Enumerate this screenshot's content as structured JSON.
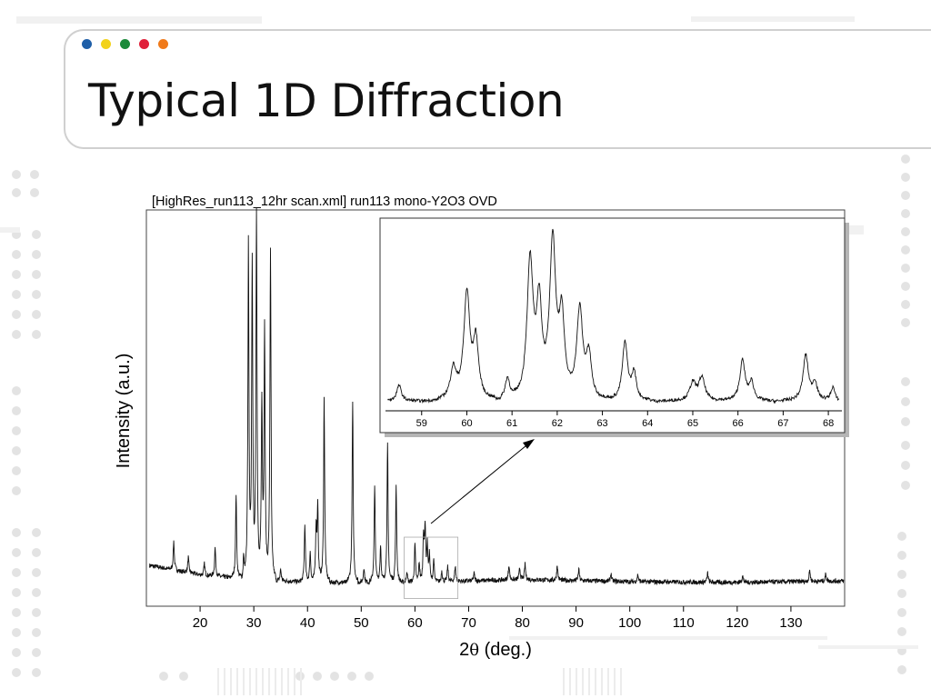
{
  "slide": {
    "title": "Typical 1D Diffraction",
    "dot_colors": [
      "#1f5fa8",
      "#f2d21b",
      "#1b8a3a",
      "#e0203a",
      "#f07a1a"
    ],
    "accent_gray": "#e3e3e3"
  },
  "chart_data": {
    "type": "line",
    "title": "[HighRes_run113_12hr scan.xml] run113 mono-Y2O3 OVD",
    "xlabel_prefix": "2",
    "xlabel_symbol": "θ",
    "xlabel_suffix": " (deg.)",
    "ylabel": "Intensity (a.u.)",
    "xlim": [
      10,
      140
    ],
    "ylim": [
      0,
      1.0
    ],
    "xticks": [
      20,
      30,
      40,
      50,
      60,
      70,
      80,
      90,
      100,
      110,
      120,
      130
    ],
    "baseline": [
      [
        10,
        0.108
      ],
      [
        20,
        0.082
      ],
      [
        30,
        0.07
      ],
      [
        40,
        0.063
      ],
      [
        60,
        0.062
      ],
      [
        80,
        0.07
      ],
      [
        100,
        0.064
      ],
      [
        120,
        0.062
      ],
      [
        140,
        0.066
      ]
    ],
    "peaks": [
      [
        15.1,
        0.075,
        0.12
      ],
      [
        17.8,
        0.04,
        0.12
      ],
      [
        20.8,
        0.03,
        0.12
      ],
      [
        22.8,
        0.075,
        0.12
      ],
      [
        26.7,
        0.22,
        0.12
      ],
      [
        28.1,
        0.05,
        0.12
      ],
      [
        29.0,
        0.87,
        0.12
      ],
      [
        29.7,
        0.8,
        0.12
      ],
      [
        30.5,
        0.95,
        0.12
      ],
      [
        31.5,
        0.46,
        0.12
      ],
      [
        32.0,
        0.65,
        0.12
      ],
      [
        33.1,
        0.87,
        0.12
      ],
      [
        35.0,
        0.03,
        0.12
      ],
      [
        39.5,
        0.15,
        0.12
      ],
      [
        40.5,
        0.08,
        0.12
      ],
      [
        41.6,
        0.14,
        0.12
      ],
      [
        41.9,
        0.2,
        0.12
      ],
      [
        43.1,
        0.48,
        0.12
      ],
      [
        48.4,
        0.47,
        0.12
      ],
      [
        50.5,
        0.04,
        0.12
      ],
      [
        52.5,
        0.25,
        0.12
      ],
      [
        53.6,
        0.1,
        0.12
      ],
      [
        54.9,
        0.36,
        0.12
      ],
      [
        56.5,
        0.25,
        0.12
      ],
      [
        58.5,
        0.03,
        0.12
      ],
      [
        60.0,
        0.1,
        0.12
      ],
      [
        60.8,
        0.05,
        0.12
      ],
      [
        61.6,
        0.12,
        0.12
      ],
      [
        61.9,
        0.14,
        0.12
      ],
      [
        62.3,
        0.09,
        0.12
      ],
      [
        62.7,
        0.07,
        0.12
      ],
      [
        63.5,
        0.06,
        0.12
      ],
      [
        65.0,
        0.03,
        0.12
      ],
      [
        66.1,
        0.04,
        0.12
      ],
      [
        67.5,
        0.04,
        0.12
      ],
      [
        71.0,
        0.02,
        0.12
      ],
      [
        77.5,
        0.04,
        0.12
      ],
      [
        79.5,
        0.03,
        0.12
      ],
      [
        80.5,
        0.04,
        0.12
      ],
      [
        86.5,
        0.04,
        0.12
      ],
      [
        90.5,
        0.03,
        0.12
      ],
      [
        96.5,
        0.02,
        0.12
      ],
      [
        101.5,
        0.02,
        0.12
      ],
      [
        114.5,
        0.025,
        0.12
      ],
      [
        121.0,
        0.02,
        0.12
      ],
      [
        133.5,
        0.03,
        0.12
      ],
      [
        136.5,
        0.02,
        0.12
      ]
    ],
    "zoom_box": {
      "x": [
        58,
        68
      ],
      "y": [
        0.02,
        0.18
      ]
    },
    "inset": {
      "xlim": [
        58.2,
        68.3
      ],
      "ylim": [
        0,
        1.0
      ],
      "xticks": [
        59,
        60,
        61,
        62,
        63,
        64,
        65,
        66,
        67,
        68
      ],
      "baseline": [
        [
          58.2,
          0.02
        ],
        [
          68.3,
          0.02
        ]
      ],
      "peaks": [
        [
          58.5,
          0.09,
          0.06
        ],
        [
          59.7,
          0.17,
          0.08
        ],
        [
          60.0,
          0.6,
          0.08
        ],
        [
          60.2,
          0.32,
          0.07
        ],
        [
          60.9,
          0.12,
          0.06
        ],
        [
          61.4,
          0.78,
          0.08
        ],
        [
          61.6,
          0.5,
          0.07
        ],
        [
          61.9,
          0.88,
          0.08
        ],
        [
          62.1,
          0.45,
          0.07
        ],
        [
          62.5,
          0.5,
          0.08
        ],
        [
          62.7,
          0.25,
          0.07
        ],
        [
          63.5,
          0.33,
          0.07
        ],
        [
          63.7,
          0.15,
          0.06
        ],
        [
          65.0,
          0.1,
          0.08
        ],
        [
          65.2,
          0.13,
          0.08
        ],
        [
          66.1,
          0.23,
          0.07
        ],
        [
          66.3,
          0.1,
          0.06
        ],
        [
          67.5,
          0.26,
          0.07
        ],
        [
          67.7,
          0.1,
          0.06
        ],
        [
          68.1,
          0.08,
          0.05
        ]
      ]
    }
  }
}
